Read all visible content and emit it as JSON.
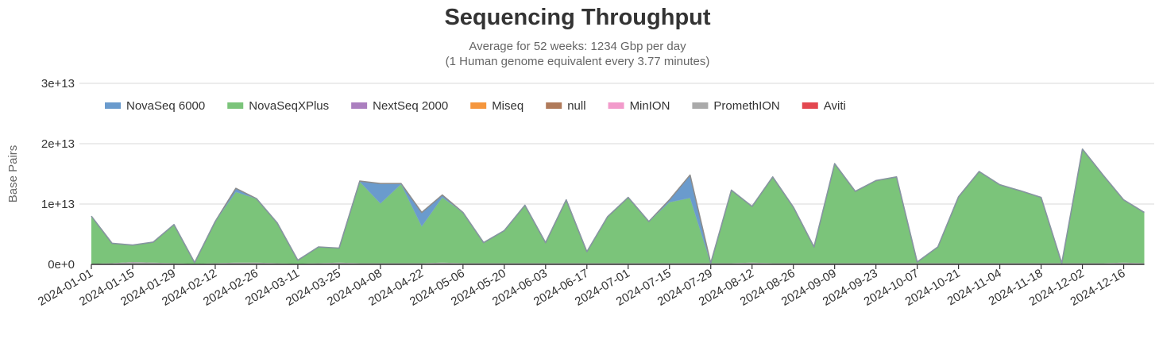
{
  "chart_data": {
    "type": "area",
    "title": "Sequencing Throughput",
    "subtitle_lines": [
      "Average for 52 weeks: 1234 Gbp per day",
      "(1 Human genome equivalent every 3.77 minutes)"
    ],
    "ylabel": "Base Pairs",
    "ylim": [
      0,
      30000000000000
    ],
    "yticks": [
      {
        "value": 0,
        "label": "0e+0"
      },
      {
        "value": 10000000000000,
        "label": "1e+13"
      },
      {
        "value": 20000000000000,
        "label": "2e+13"
      },
      {
        "value": 30000000000000,
        "label": "3e+13"
      }
    ],
    "stacked": true,
    "grid": true,
    "legend_position": "top-left",
    "xlim": [
      "2024-01-01",
      "2024-12-30"
    ],
    "xticks": [
      "2024-01-01",
      "2024-01-15",
      "2024-01-29",
      "2024-02-12",
      "2024-02-26",
      "2024-03-11",
      "2024-03-25",
      "2024-04-08",
      "2024-04-22",
      "2024-05-06",
      "2024-05-20",
      "2024-06-03",
      "2024-06-17",
      "2024-07-01",
      "2024-07-15",
      "2024-07-29",
      "2024-08-12",
      "2024-08-26",
      "2024-09-09",
      "2024-09-23",
      "2024-10-07",
      "2024-10-21",
      "2024-11-04",
      "2024-11-18",
      "2024-12-02",
      "2024-12-16"
    ],
    "x": [
      "2024-01-01",
      "2024-01-08",
      "2024-01-15",
      "2024-01-22",
      "2024-01-29",
      "2024-02-05",
      "2024-02-12",
      "2024-02-19",
      "2024-02-26",
      "2024-03-04",
      "2024-03-11",
      "2024-03-18",
      "2024-03-25",
      "2024-04-01",
      "2024-04-08",
      "2024-04-15",
      "2024-04-22",
      "2024-04-29",
      "2024-05-06",
      "2024-05-13",
      "2024-05-20",
      "2024-05-27",
      "2024-06-03",
      "2024-06-10",
      "2024-06-17",
      "2024-06-24",
      "2024-07-01",
      "2024-07-08",
      "2024-07-15",
      "2024-07-22",
      "2024-07-29",
      "2024-08-05",
      "2024-08-12",
      "2024-08-19",
      "2024-08-26",
      "2024-09-02",
      "2024-09-09",
      "2024-09-16",
      "2024-09-23",
      "2024-09-30",
      "2024-10-07",
      "2024-10-14",
      "2024-10-21",
      "2024-10-28",
      "2024-11-04",
      "2024-11-11",
      "2024-11-18",
      "2024-11-25",
      "2024-12-02",
      "2024-12-09",
      "2024-12-16",
      "2024-12-23"
    ],
    "series": [
      {
        "name": "NovaSeq 6000",
        "color": "#6a9bcd",
        "values": [
          0,
          0,
          0,
          0,
          0,
          0,
          0,
          0.6,
          0,
          0,
          0,
          0,
          0,
          0.1,
          3.3,
          0.1,
          2.3,
          0.4,
          0,
          0,
          0,
          0,
          0,
          0,
          0,
          0,
          0,
          0,
          0.4,
          3.8,
          0,
          0,
          0,
          0,
          0,
          0,
          0,
          0,
          0,
          0,
          0,
          0,
          0,
          0,
          0,
          0,
          0,
          0,
          0,
          0,
          0,
          0
        ]
      },
      {
        "name": "NovaSeqXPlus",
        "color": "#7bc47a",
        "values": [
          7.9,
          3.3,
          2.8,
          3.4,
          6.4,
          0.2,
          6.9,
          11.7,
          10.6,
          6.7,
          0.6,
          2.7,
          2.4,
          13.5,
          9.9,
          13.1,
          6.1,
          10.8,
          8.4,
          3.4,
          5.4,
          9.6,
          3.4,
          10.5,
          1.9,
          7.7,
          10.9,
          6.9,
          10.1,
          10.8,
          0,
          12.1,
          9.3,
          14.3,
          9.3,
          2.7,
          16.5,
          11.9,
          13.7,
          14.3,
          0.2,
          2.7,
          11.0,
          15.2,
          13.0,
          12.0,
          10.9,
          0,
          18.9,
          14.6,
          10.4,
          8.4
        ]
      },
      {
        "name": "NextSeq 2000",
        "color": "#ab7fbf",
        "values": [
          0,
          0,
          0,
          0,
          0,
          0,
          0,
          0,
          0,
          0,
          0,
          0,
          0,
          0,
          0,
          0,
          0,
          0,
          0,
          0,
          0,
          0,
          0,
          0,
          0,
          0,
          0,
          0,
          0,
          0,
          0,
          0,
          0,
          0,
          0,
          0,
          0,
          0,
          0,
          0,
          0,
          0,
          0,
          0,
          0,
          0,
          0,
          0,
          0,
          0,
          0,
          0
        ]
      },
      {
        "name": "Miseq",
        "color": "#f5963d",
        "values": [
          0,
          0,
          0,
          0,
          0,
          0,
          0,
          0,
          0,
          0,
          0,
          0,
          0,
          0,
          0,
          0,
          0,
          0,
          0,
          0,
          0,
          0,
          0,
          0,
          0,
          0,
          0,
          0,
          0,
          0,
          0,
          0,
          0,
          0,
          0,
          0,
          0,
          0,
          0,
          0,
          0,
          0,
          0,
          0,
          0,
          0,
          0,
          0,
          0,
          0,
          0,
          0
        ]
      },
      {
        "name": "null",
        "color": "#b07a5a",
        "values": [
          0,
          0,
          0,
          0,
          0,
          0,
          0,
          0,
          0,
          0,
          0,
          0,
          0,
          0,
          0,
          0,
          0,
          0,
          0,
          0,
          0,
          0,
          0,
          0,
          0,
          0,
          0,
          0,
          0,
          0,
          0,
          0,
          0,
          0,
          0,
          0,
          0,
          0,
          0,
          0,
          0,
          0,
          0,
          0,
          0,
          0,
          0,
          0,
          0,
          0,
          0,
          0
        ]
      },
      {
        "name": "MinION",
        "color": "#f29bcb",
        "values": [
          0,
          0,
          0,
          0,
          0,
          0,
          0,
          0,
          0,
          0,
          0,
          0,
          0,
          0,
          0,
          0,
          0,
          0,
          0,
          0,
          0,
          0,
          0,
          0,
          0,
          0,
          0,
          0,
          0,
          0,
          0,
          0,
          0,
          0,
          0,
          0,
          0,
          0,
          0,
          0,
          0,
          0,
          0,
          0,
          0,
          0,
          0,
          0,
          0,
          0,
          0,
          0
        ]
      },
      {
        "name": "PromethION",
        "color": "#aaaaaa",
        "values": [
          0.1,
          0.2,
          0.4,
          0.3,
          0.2,
          0.1,
          0.2,
          0.3,
          0.3,
          0.2,
          0.1,
          0.2,
          0.3,
          0.2,
          0.2,
          0.2,
          0.2,
          0.3,
          0.2,
          0.2,
          0.2,
          0.2,
          0.2,
          0.2,
          0.2,
          0.2,
          0.2,
          0.2,
          0.2,
          0.2,
          0.2,
          0.2,
          0.3,
          0.2,
          0.2,
          0.2,
          0.2,
          0.2,
          0.2,
          0.2,
          0.2,
          0.2,
          0.2,
          0.2,
          0.2,
          0.2,
          0.2,
          0.2,
          0.2,
          0.2,
          0.3,
          0.2
        ]
      },
      {
        "name": "Aviti",
        "color": "#e3474f",
        "values": [
          0,
          0,
          0,
          0,
          0,
          0,
          0,
          0,
          0,
          0,
          0,
          0,
          0,
          0,
          0,
          0,
          0,
          0,
          0,
          0,
          0,
          0,
          0,
          0,
          0,
          0,
          0,
          0,
          0,
          0,
          0,
          0,
          0,
          0,
          0,
          0,
          0,
          0,
          0,
          0,
          0,
          0,
          0,
          0,
          0,
          0,
          0,
          0,
          0,
          0,
          0,
          0
        ]
      }
    ],
    "value_unit_multiplier": 1000000000000
  }
}
